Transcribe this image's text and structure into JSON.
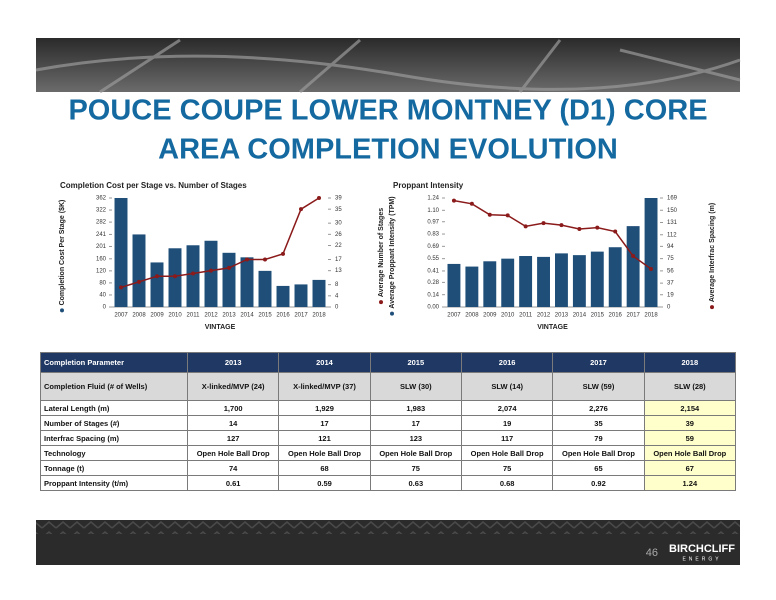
{
  "header": {
    "title_lines": [
      "POUCE COUPE LOWER MONTNEY (D1) CORE",
      "AREA COMPLETION EVOLUTION"
    ]
  },
  "chart_data": [
    {
      "type": "combo",
      "title": "Completion Cost per Stage vs. Number of Stages",
      "x_label": "VINTAGE",
      "categories": [
        "2007",
        "2008",
        "2009",
        "2010",
        "2011",
        "2012",
        "2013",
        "2014",
        "2015",
        "2016",
        "2017",
        "2018"
      ],
      "series": [
        {
          "name": "Completion Cost Per Stage ($K)",
          "kind": "bar",
          "color": "#1f4e79",
          "values": [
            362,
            241,
            148,
            195,
            205,
            220,
            180,
            165,
            120,
            70,
            75,
            90
          ]
        },
        {
          "kind": "line",
          "axis": "y2",
          "color": "#8b1a1a",
          "values": [
            7,
            9,
            11,
            11,
            12,
            13,
            14,
            17,
            17,
            19,
            35,
            39
          ]
        }
      ],
      "ylim": [
        0,
        362
      ],
      "yticks": [
        0,
        40,
        80,
        120,
        160,
        201,
        241,
        282,
        322,
        362
      ],
      "y2lim": [
        0,
        39
      ],
      "y2ticks": [
        0,
        4,
        8,
        13,
        17,
        22,
        26,
        30,
        35,
        39
      ]
    },
    {
      "type": "combo",
      "title": "Proppant Intensity",
      "x_label": "VINTAGE",
      "extra_label": "Average Number of Stages",
      "categories": [
        "2007",
        "2008",
        "2009",
        "2010",
        "2011",
        "2012",
        "2013",
        "2014",
        "2015",
        "2016",
        "2017",
        "2018"
      ],
      "series": [
        {
          "name": "Average Proppant Intensity (TPM)",
          "kind": "bar",
          "color": "#1f4e79",
          "values": [
            0.49,
            0.46,
            0.52,
            0.55,
            0.58,
            0.57,
            0.61,
            0.59,
            0.63,
            0.68,
            0.92,
            1.24
          ]
        },
        {
          "name": "Average Interfrac Spacing (m)",
          "kind": "line",
          "axis": "y2",
          "color": "#8b1a1a",
          "values": [
            165,
            160,
            143,
            142,
            125,
            130,
            127,
            121,
            123,
            117,
            79,
            59
          ]
        }
      ],
      "ylim": [
        0,
        1.24
      ],
      "yticks": [
        {
          "value": 0,
          "label": "0.00"
        },
        0.14,
        0.28,
        0.41,
        0.55,
        0.69,
        0.83,
        0.97,
        {
          "value": 1.1,
          "label": "1.10"
        },
        1.24
      ],
      "y2lim": [
        0,
        169
      ],
      "y2ticks": [
        0,
        19,
        37,
        56,
        75,
        94,
        112,
        131,
        150,
        169
      ]
    }
  ],
  "table": {
    "header": [
      "Completion Parameter",
      "2013",
      "2014",
      "2015",
      "2016",
      "2017",
      "2018"
    ],
    "rows": [
      [
        "Completion Fluid (# of Wells)",
        "X-linked/MVP (24)",
        "X-linked/MVP (37)",
        "SLW (30)",
        "SLW (14)",
        "SLW (59)",
        "SLW (28)"
      ],
      [
        "Lateral Length (m)",
        "1,700",
        "1,929",
        "1,983",
        "2,074",
        "2,276",
        "2,154"
      ],
      [
        "Number of Stages (#)",
        "14",
        "17",
        "17",
        "19",
        "35",
        "39"
      ],
      [
        "Interfrac Spacing (m)",
        "127",
        "121",
        "123",
        "117",
        "79",
        "59"
      ],
      [
        "Technology",
        "Open Hole Ball Drop",
        "Open Hole Ball Drop",
        "Open Hole Ball Drop",
        "Open Hole Ball Drop",
        "Open Hole Ball Drop",
        "Open Hole Ball Drop"
      ],
      [
        "Tonnage (t)",
        "74",
        "68",
        "75",
        "75",
        "65",
        "67"
      ],
      [
        "Proppant Intensity (t/m)",
        "0.61",
        "0.59",
        "0.63",
        "0.68",
        "0.92",
        "1.24"
      ]
    ]
  },
  "footer": {
    "page": "46",
    "logo": "BIRCHCLIFF",
    "logo_sub": "ENERGY"
  }
}
